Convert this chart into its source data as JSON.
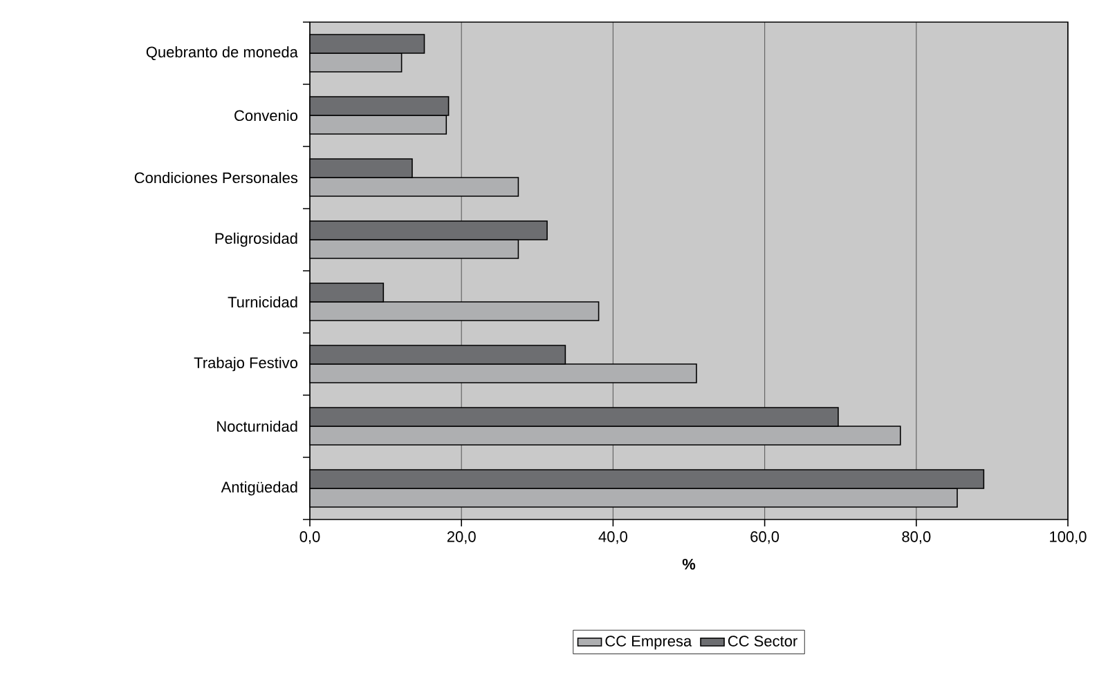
{
  "chart_data": {
    "type": "bar",
    "orientation": "horizontal",
    "xlabel": "%",
    "categories": [
      "Quebranto de moneda",
      "Convenio",
      "Condiciones Personales",
      "Peligrosidad",
      "Turnicidad",
      "Trabajo Festivo",
      "Nocturnidad",
      "Antigüedad"
    ],
    "series": [
      {
        "name": "CC Empresa",
        "color": "#aeafb1",
        "values": [
          12.1,
          18.0,
          27.5,
          27.5,
          38.1,
          51.0,
          77.9,
          85.4
        ]
      },
      {
        "name": "CC Sector",
        "color": "#6d6e71",
        "values": [
          15.1,
          18.3,
          13.5,
          31.3,
          9.7,
          33.7,
          69.7,
          88.9
        ]
      }
    ],
    "xlim": [
      0,
      100
    ],
    "xticks": [
      {
        "value": 0,
        "label": "0,0"
      },
      {
        "value": 20,
        "label": "20,0"
      },
      {
        "value": 40,
        "label": "40,0"
      },
      {
        "value": 60,
        "label": "60,0"
      },
      {
        "value": 80,
        "label": "80,0"
      },
      {
        "value": 100,
        "label": "100,0"
      }
    ],
    "grid": "x",
    "legend": "bottom"
  }
}
